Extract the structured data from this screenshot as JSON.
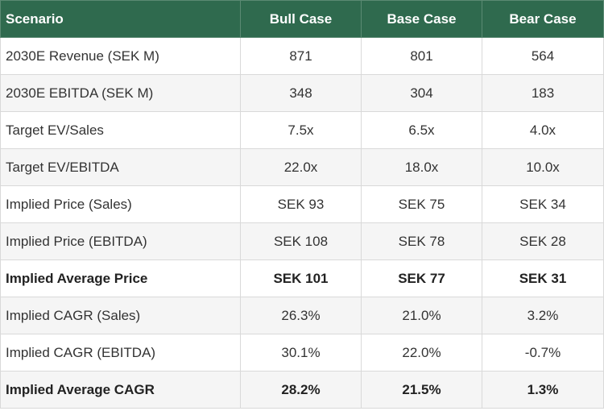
{
  "table": {
    "header": [
      "Scenario",
      "Bull Case",
      "Base Case",
      "Bear Case"
    ],
    "rows": [
      [
        "2030E Revenue (SEK M)",
        "871",
        "801",
        "564"
      ],
      [
        "2030E EBITDA (SEK M)",
        "348",
        "304",
        "183"
      ],
      [
        "Target EV/Sales",
        "7.5x",
        "6.5x",
        "4.0x"
      ],
      [
        "Target EV/EBITDA",
        "22.0x",
        "18.0x",
        "10.0x"
      ],
      [
        "Implied Price (Sales)",
        "SEK 93",
        "SEK 75",
        "SEK 34"
      ],
      [
        "Implied Price (EBITDA)",
        "SEK 108",
        "SEK 78",
        "SEK 28"
      ],
      [
        "Implied Average Price",
        "SEK 101",
        "SEK 77",
        "SEK 31"
      ],
      [
        "Implied CAGR (Sales)",
        "26.3%",
        "21.0%",
        "3.2%"
      ],
      [
        "Implied CAGR (EBITDA)",
        "30.1%",
        "22.0%",
        "-0.7%"
      ],
      [
        "Implied Average CAGR",
        "28.2%",
        "21.5%",
        "1.3%"
      ]
    ]
  }
}
